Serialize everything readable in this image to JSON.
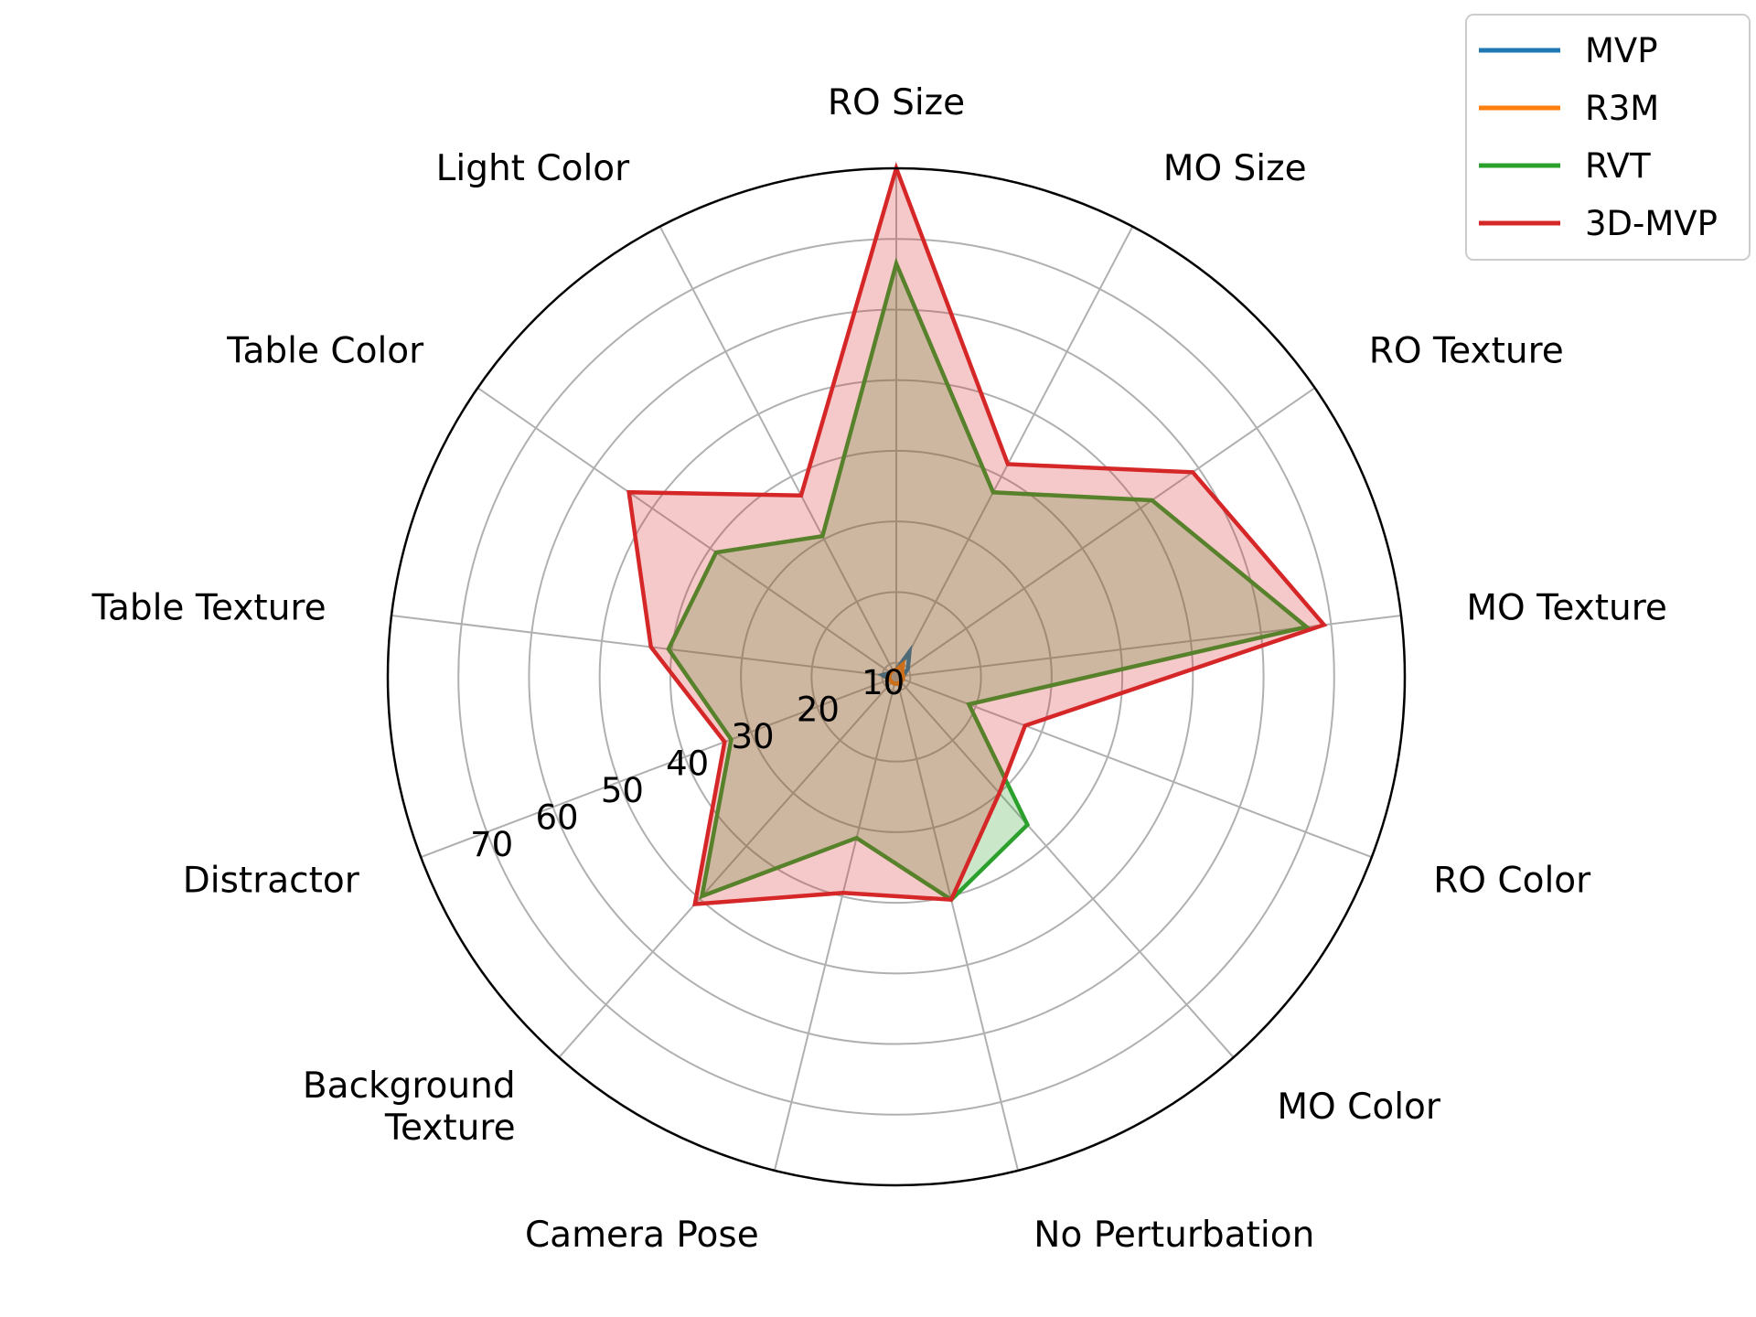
{
  "chart_data": {
    "type": "radar",
    "title": "",
    "categories": [
      "RO Size",
      "MO Size",
      "RO Texture",
      "MO Texture",
      "RO Color",
      "MO Color",
      "No Perturbation",
      "Camera Pose",
      "Background Texture",
      "Distractor",
      "Table Texture",
      "Table Color",
      "Light Color"
    ],
    "category_lines": [
      [
        "RO Size"
      ],
      [
        "MO Size"
      ],
      [
        "RO Texture"
      ],
      [
        "MO Texture"
      ],
      [
        "RO Color"
      ],
      [
        "MO Color"
      ],
      [
        "No Perturbation"
      ],
      [
        "Camera Pose"
      ],
      [
        "Background",
        "Texture"
      ],
      [
        "Distractor"
      ],
      [
        "Table Texture"
      ],
      [
        "Table Color"
      ],
      [
        "Light Color"
      ]
    ],
    "radial_ticks": [
      10,
      20,
      30,
      40,
      50,
      60,
      70
    ],
    "radial_tick_labels": [
      "10",
      "20",
      "30",
      "40",
      "50",
      "60",
      "70"
    ],
    "rlim": [
      8,
      80
    ],
    "grid": true,
    "legend_position": "top-right",
    "series": [
      {
        "name": "MVP",
        "color": "#1f77b4",
        "fill": false,
        "values": [
          9,
          12,
          10,
          9,
          9,
          9,
          9,
          9,
          9,
          9,
          10,
          9,
          9
        ]
      },
      {
        "name": "R3M",
        "color": "#ff7f0e",
        "fill": false,
        "values": [
          9,
          10,
          9,
          9,
          9,
          9,
          9,
          9,
          9,
          9,
          9,
          9,
          9
        ]
      },
      {
        "name": "RVT",
        "color": "#2ca02c",
        "fill": true,
        "values": [
          66.5,
          37.5,
          52,
          66.5,
          19,
          36,
          40.5,
          31.5,
          49.5,
          33,
          40.5,
          39,
          30.5
        ]
      },
      {
        "name": "3D-MVP",
        "color": "#d62728",
        "fill": true,
        "values": [
          80,
          42,
          59,
          69,
          27.5,
          30,
          40.5,
          39.5,
          51,
          34,
          43,
          54,
          37
        ]
      }
    ]
  }
}
